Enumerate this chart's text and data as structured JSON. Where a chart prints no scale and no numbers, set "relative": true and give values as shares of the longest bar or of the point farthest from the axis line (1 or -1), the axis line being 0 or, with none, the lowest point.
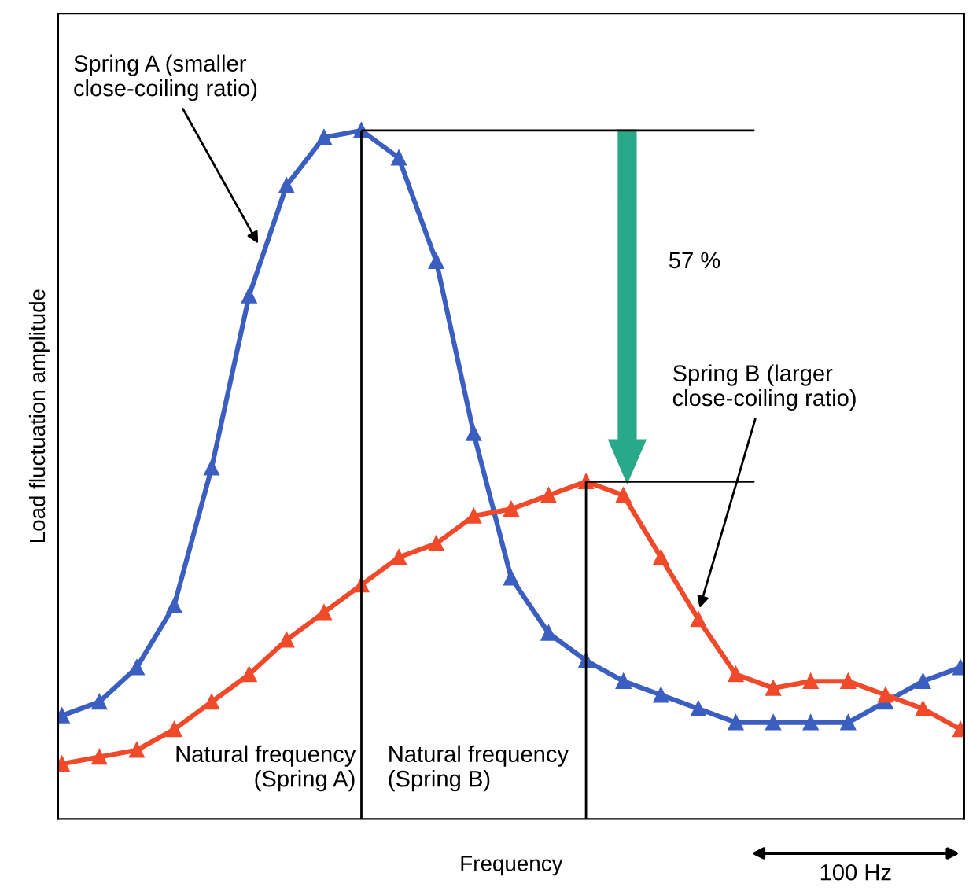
{
  "chart_data": {
    "type": "line",
    "relative": true,
    "xlabel": "Frequency",
    "ylabel": "Load fluctuation amplitude",
    "categories": [
      null,
      null,
      null,
      null,
      null,
      null,
      null,
      null,
      null,
      null,
      null,
      null,
      null,
      null,
      null,
      null,
      null,
      null,
      null,
      null,
      null,
      null,
      null,
      null,
      null
    ],
    "series": [
      {
        "color": "#3b5fc0",
        "values": [
          0.15,
          0.17,
          0.22,
          0.31,
          0.51,
          0.76,
          0.92,
          0.99,
          1,
          0.96,
          0.81,
          0.56,
          0.35,
          0.27,
          0.23,
          0.2,
          0.18,
          0.16,
          0.14,
          0.14,
          0.14,
          0.14,
          0.17,
          0.2,
          0.22
        ]
      },
      {
        "color": "#f04a2a",
        "values": [
          0.08,
          0.09,
          0.1,
          0.13,
          0.17,
          0.21,
          0.26,
          0.3,
          0.34,
          0.38,
          0.4,
          0.44,
          0.45,
          0.47,
          0.49,
          0.47,
          0.38,
          0.29,
          0.21,
          0.19,
          0.2,
          0.2,
          0.18,
          0.16,
          0.13
        ]
      }
    ],
    "marker": "triangle",
    "line_style": "solid",
    "grid": false,
    "legend": false,
    "ref_lines": [
      {
        "axis": "y",
        "value": 1,
        "color": "#000000"
      },
      {
        "axis": "y",
        "value": 0.49,
        "color": "#000000"
      }
    ],
    "annotations": [
      "Spring A (smaller\nclose-coiling ratio)",
      "Spring B (larger\nclose-coiling ratio)",
      "57 %",
      "100 Hz",
      "Natural frequency\n(Spring A)",
      "Natural frequency\n(Spring B)"
    ]
  }
}
